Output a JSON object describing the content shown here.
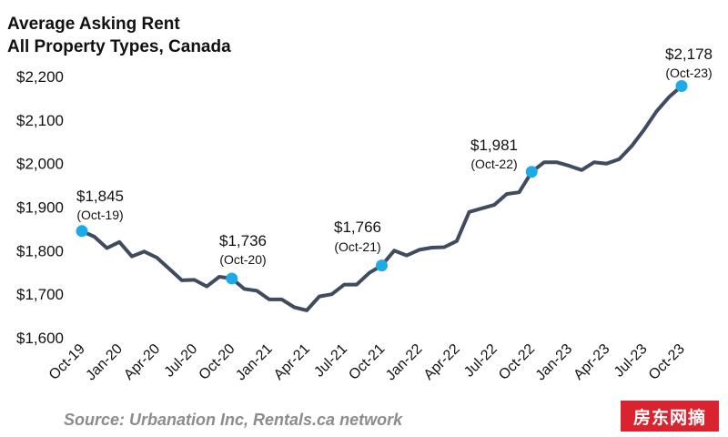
{
  "header": {
    "title_line1": "Average Asking Rent",
    "title_line2": "All Property Types, Canada"
  },
  "footer": {
    "source": "Source: Urbanation Inc, Rentals.ca network",
    "badge": "房东网摘"
  },
  "colors": {
    "line": "#3f4b5e",
    "marker": "#1eaae7",
    "text": "#111111",
    "source": "#8c8c8c",
    "badge_bg": "#d9232e"
  },
  "chart_data": {
    "type": "line",
    "title": "Average Asking Rent All Property Types, Canada",
    "ylim": [
      1600,
      2200
    ],
    "yticks": [
      1600,
      1700,
      1800,
      1900,
      2000,
      2100,
      2200
    ],
    "ytick_labels": [
      "$1,600",
      "$1,700",
      "$1,800",
      "$1,900",
      "$2,000",
      "$2,100",
      "$2,200"
    ],
    "xtick_labels": [
      "Oct-19",
      "Jan-20",
      "Apr-20",
      "Jul-20",
      "Oct-20",
      "Jan-21",
      "Apr-21",
      "Jul-21",
      "Oct-21",
      "Jan-22",
      "Apr-22",
      "Jul-22",
      "Oct-22",
      "Jan-23",
      "Apr-23",
      "Jul-23",
      "Oct-23"
    ],
    "x": [
      "Oct-19",
      "Nov-19",
      "Dec-19",
      "Jan-20",
      "Feb-20",
      "Mar-20",
      "Apr-20",
      "May-20",
      "Jun-20",
      "Jul-20",
      "Aug-20",
      "Sep-20",
      "Oct-20",
      "Nov-20",
      "Dec-20",
      "Jan-21",
      "Feb-21",
      "Mar-21",
      "Apr-21",
      "May-21",
      "Jun-21",
      "Jul-21",
      "Aug-21",
      "Sep-21",
      "Oct-21",
      "Nov-21",
      "Dec-21",
      "Jan-22",
      "Feb-22",
      "Mar-22",
      "Apr-22",
      "May-22",
      "Jun-22",
      "Jul-22",
      "Aug-22",
      "Sep-22",
      "Oct-22",
      "Nov-22",
      "Dec-22",
      "Jan-23",
      "Feb-23",
      "Mar-23",
      "Apr-23",
      "May-23",
      "Jun-23",
      "Jul-23",
      "Aug-23",
      "Sep-23",
      "Oct-23"
    ],
    "values": [
      1845,
      1832,
      1806,
      1820,
      1787,
      1798,
      1784,
      1758,
      1732,
      1733,
      1718,
      1740,
      1736,
      1712,
      1708,
      1688,
      1688,
      1670,
      1663,
      1695,
      1700,
      1722,
      1722,
      1749,
      1766,
      1800,
      1789,
      1802,
      1807,
      1808,
      1822,
      1889,
      1897,
      1905,
      1930,
      1934,
      1981,
      2003,
      2003,
      1995,
      1985,
      2003,
      2000,
      2010,
      2040,
      2078,
      2120,
      2153,
      2178
    ],
    "annotations": [
      {
        "x_index": 0,
        "value_label": "$1,845",
        "date_label": "(Oct-19)"
      },
      {
        "x_index": 12,
        "value_label": "$1,736",
        "date_label": "(Oct-20)"
      },
      {
        "x_index": 24,
        "value_label": "$1,766",
        "date_label": "(Oct-21)"
      },
      {
        "x_index": 36,
        "value_label": "$1,981",
        "date_label": "(Oct-22)"
      },
      {
        "x_index": 48,
        "value_label": "$2,178",
        "date_label": "(Oct-23)"
      }
    ],
    "grid": false,
    "legend": "none"
  }
}
